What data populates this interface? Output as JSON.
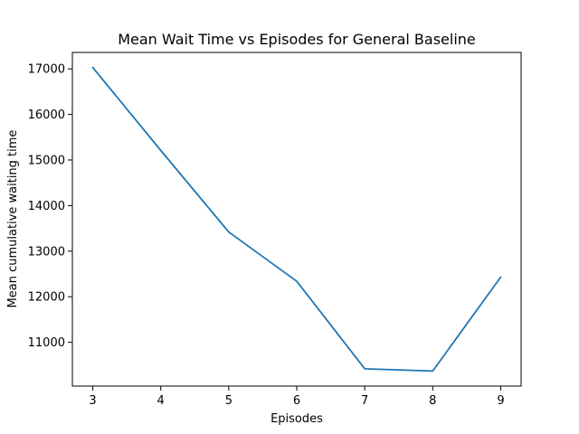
{
  "chart_data": {
    "type": "line",
    "title": "Mean Wait Time vs Episodes for General Baseline",
    "xlabel": "Episodes",
    "ylabel": "Mean cumulative waiting time",
    "x": [
      3,
      4,
      5,
      6,
      7,
      8,
      9
    ],
    "series": [
      {
        "values": [
          17030,
          15210,
          13420,
          12340,
          10420,
          10370,
          12430
        ],
        "color": "#1f77b4"
      }
    ],
    "xlim": [
      2.7,
      9.3
    ],
    "ylim": [
      10040,
      17360
    ],
    "xticks": [
      "3",
      "4",
      "5",
      "6",
      "7",
      "8",
      "9"
    ],
    "yticks": [
      "11000",
      "12000",
      "13000",
      "14000",
      "15000",
      "16000",
      "17000"
    ],
    "grid": false,
    "legend": "none"
  }
}
